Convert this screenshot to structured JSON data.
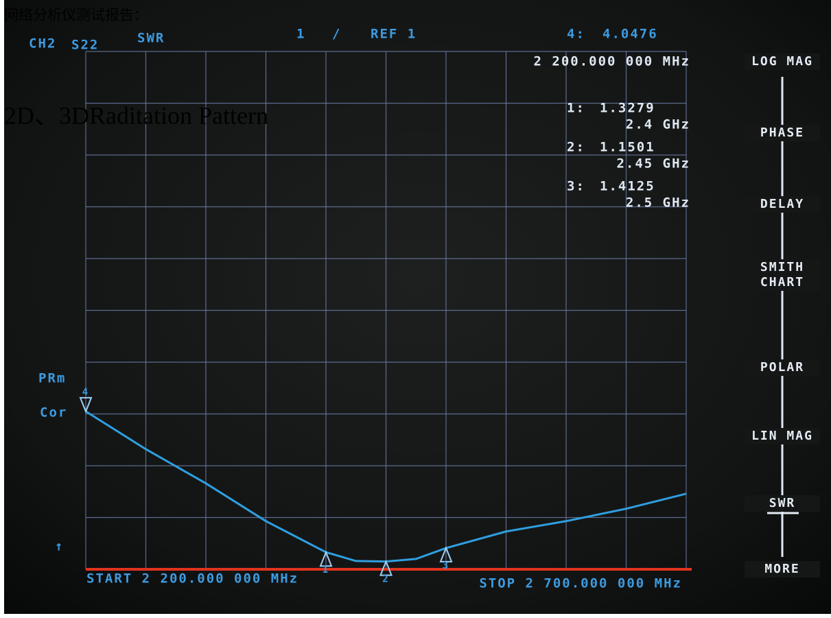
{
  "overlay": {
    "report_title": "网络分析仪测试报告：",
    "section_title": "2D、3DRaditation Pattern"
  },
  "header": {
    "channel": "CH2",
    "parameter": "S22",
    "format": "SWR",
    "scale": "1",
    "scale_unit": "/",
    "reference": "REF 1",
    "active_marker_frequency": "2 200.000 000 MHz"
  },
  "side_labels": {
    "status_1": "PRm",
    "status_2": "Cor",
    "reference_arrow": "↑"
  },
  "softkeys": [
    "LOG MAG",
    "PHASE",
    "DELAY",
    "SMITH",
    "CHART",
    "POLAR",
    "LIN MAG",
    "SWR",
    "MORE"
  ],
  "chart_data": {
    "type": "line",
    "start_label": "START 2 200.000 000 MHz",
    "stop_label": "STOP 2 700.000 000 MHz",
    "xlim": [
      2.2,
      2.7
    ],
    "ylim": [
      1,
      11
    ],
    "x": [
      2.2,
      2.25,
      2.3,
      2.35,
      2.4,
      2.425,
      2.45,
      2.475,
      2.5,
      2.55,
      2.6,
      2.65,
      2.7
    ],
    "series": [
      {
        "color": "#2f9fe0",
        "values": [
          4.05,
          3.32,
          2.66,
          1.93,
          1.33,
          1.16,
          1.15,
          1.2,
          1.41,
          1.73,
          1.93,
          2.17,
          2.46
        ]
      }
    ],
    "reference_color": "#e0331e",
    "markers": [
      {
        "id": "1",
        "label": "1:",
        "value": 1.3279,
        "x": 2.4,
        "x_label": "2.4 GHz"
      },
      {
        "id": "2",
        "label": "2:",
        "value": 1.1501,
        "x": 2.45,
        "x_label": "2.45 GHz"
      },
      {
        "id": "3",
        "label": "3:",
        "value": 1.4125,
        "x": 2.5,
        "x_label": "2.5 GHz"
      },
      {
        "id": "4",
        "label": "4:",
        "value": 4.0476,
        "x": 2.2
      }
    ]
  }
}
